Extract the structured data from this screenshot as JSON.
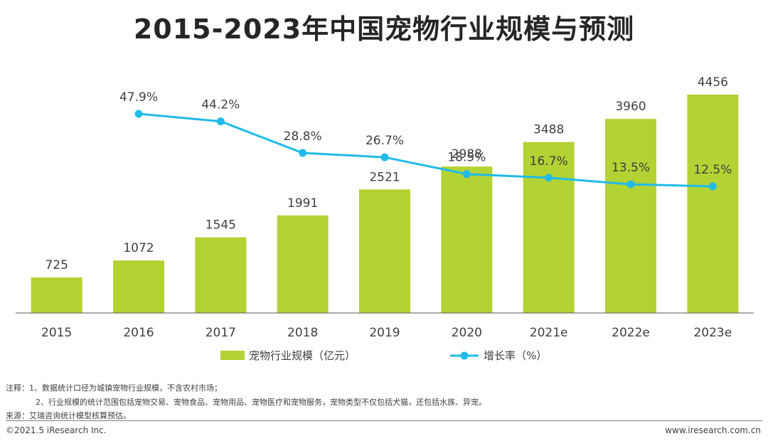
{
  "chart_data": {
    "type": "bar",
    "title": "2015-2023年中国宠物行业规模与预测",
    "categories": [
      "2015",
      "2016",
      "2017",
      "2018",
      "2019",
      "2020",
      "2021e",
      "2022e",
      "2023e"
    ],
    "series": [
      {
        "name": "宠物行业规模（亿元）",
        "type": "bar",
        "color": "#b3d234",
        "values": [
          725,
          1072,
          1545,
          1991,
          2521,
          2988,
          3488,
          3960,
          4456
        ],
        "labels": [
          "725",
          "1072",
          "1545",
          "1991",
          "2521",
          "2988",
          "3488",
          "3960",
          "4456"
        ]
      },
      {
        "name": "增长率（%）",
        "type": "line",
        "color": "#21bbea",
        "values": [
          null,
          47.9,
          44.2,
          28.8,
          26.7,
          18.5,
          16.7,
          13.5,
          12.5
        ],
        "labels": [
          "",
          "47.9%",
          "44.2%",
          "28.8%",
          "26.7%",
          "18.5%",
          "16.7%",
          "13.5%",
          "12.5%"
        ]
      }
    ],
    "grid": false,
    "legend": "bottom"
  },
  "notes": {
    "line1": "注释：1、数据统计口径为城镇宠物行业规模，不含农村市场；",
    "line2": "2、行业规模的统计范围包括宠物交易、宠物食品、宠物用品、宠物医疗和宠物服务，宠物类型不仅包括犬猫，还包括水族、异宠。",
    "source": "来源：艾瑞咨询统计模型核算预估。"
  },
  "footer": {
    "copyright": "©2021.5 iResearch Inc.",
    "url": "www.iresearch.com.cn"
  }
}
